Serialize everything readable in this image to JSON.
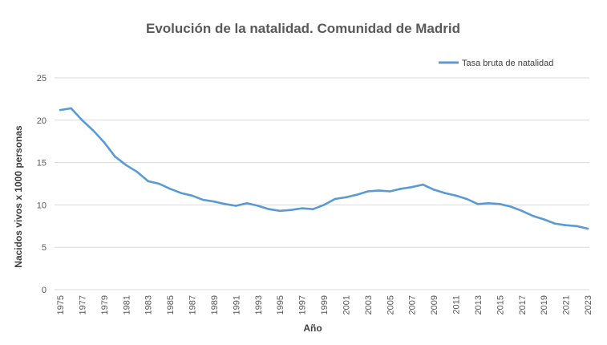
{
  "chart_data": {
    "type": "line",
    "title": "Evolución de la natalidad. Comunidad de Madrid",
    "xlabel": "Año",
    "ylabel": "Nacidos vivos x 1000 personas",
    "ylim": [
      0,
      25
    ],
    "yticks": [
      0,
      5,
      10,
      15,
      20,
      25
    ],
    "grid": true,
    "legend_position": "top-right",
    "x": [
      1975,
      1976,
      1977,
      1978,
      1979,
      1980,
      1981,
      1982,
      1983,
      1984,
      1985,
      1986,
      1987,
      1988,
      1989,
      1990,
      1991,
      1992,
      1993,
      1994,
      1995,
      1996,
      1997,
      1998,
      1999,
      2000,
      2001,
      2002,
      2003,
      2004,
      2005,
      2006,
      2007,
      2008,
      2009,
      2010,
      2011,
      2012,
      2013,
      2014,
      2015,
      2016,
      2017,
      2018,
      2019,
      2020,
      2021,
      2022,
      2023
    ],
    "xticks": [
      1975,
      1977,
      1979,
      1981,
      1983,
      1985,
      1987,
      1989,
      1991,
      1993,
      1995,
      1997,
      1999,
      2001,
      2003,
      2005,
      2007,
      2009,
      2011,
      2013,
      2015,
      2017,
      2019,
      2021,
      2023
    ],
    "series": [
      {
        "name": "Tasa bruta de natalidad",
        "color": "#5b9bd5",
        "values": [
          21.2,
          21.4,
          20.0,
          18.8,
          17.4,
          15.7,
          14.7,
          13.9,
          12.8,
          12.5,
          11.9,
          11.4,
          11.1,
          10.6,
          10.4,
          10.1,
          9.9,
          10.2,
          9.9,
          9.5,
          9.3,
          9.4,
          9.6,
          9.5,
          10.0,
          10.7,
          10.9,
          11.2,
          11.6,
          11.7,
          11.6,
          11.9,
          12.1,
          12.4,
          11.8,
          11.4,
          11.1,
          10.7,
          10.1,
          10.2,
          10.1,
          9.8,
          9.3,
          8.7,
          8.3,
          7.8,
          7.6,
          7.5,
          7.2
        ]
      }
    ]
  }
}
